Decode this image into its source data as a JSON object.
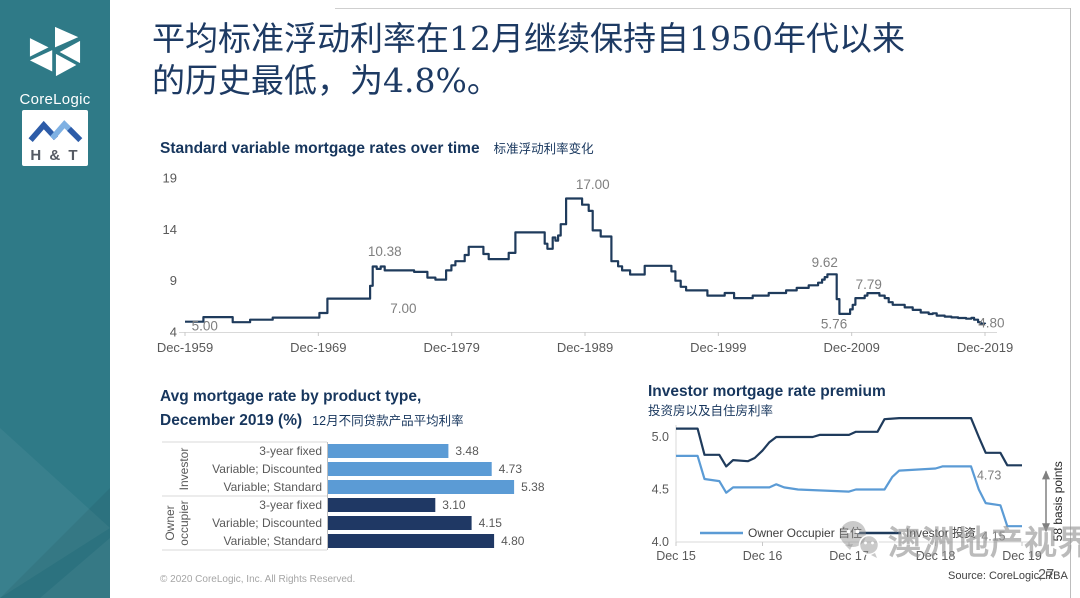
{
  "sidebar": {
    "corelogic_label": "CoreLogic",
    "ht_label": "H & T"
  },
  "title": {
    "line1": "平均标准浮动利率在12月继续保持自1950年代以来",
    "line2": "的历史最低，为4.8%。"
  },
  "footer": {
    "copyright": "© 2020 CoreLogic,  Inc. All Rights Reserved.",
    "source": "Source: CoreLogic, RBA",
    "page": "27"
  },
  "watermark": {
    "icon": "wechat-icon",
    "text": "澳洲地产视界"
  },
  "colors": {
    "sidebar_teal": "#2F7A87",
    "navy_line": "#1F3B5C",
    "light_blue": "#5B9BD5",
    "dark_bar": "#1F3864",
    "heading_blue": "#17365D",
    "annotation_gray": "#7f7f7f",
    "axis_gray": "#595959"
  },
  "chart_data": [
    {
      "id": "svr_over_time",
      "type": "line",
      "interpolation": "step-after",
      "title": "Standard variable mortgage rates over time",
      "title_zh": "标准浮动利率变化",
      "color": "#1F3B5C",
      "ylim": [
        4,
        19
      ],
      "yticks": [
        4,
        9,
        14,
        19
      ],
      "xlim": [
        1959.92,
        2019.92
      ],
      "xticks": [
        {
          "label": "Dec-1959",
          "year": 1959.92
        },
        {
          "label": "Dec-1969",
          "year": 1969.92
        },
        {
          "label": "Dec-1979",
          "year": 1979.92
        },
        {
          "label": "Dec-1989",
          "year": 1989.92
        },
        {
          "label": "Dec-1999",
          "year": 1999.92
        },
        {
          "label": "Dec-2009",
          "year": 2009.92
        },
        {
          "label": "Dec-2019",
          "year": 2019.92
        }
      ],
      "grid": false,
      "legend_position": "none",
      "series": [
        {
          "name": "Standard variable mortgage rate (%)",
          "points": [
            [
              1959.92,
              5.0
            ],
            [
              1961.3,
              5.45
            ],
            [
              1963.2,
              5.45
            ],
            [
              1963.5,
              4.95
            ],
            [
              1964.6,
              4.95
            ],
            [
              1964.8,
              5.2
            ],
            [
              1966.3,
              5.2
            ],
            [
              1966.5,
              5.4
            ],
            [
              1969.8,
              5.4
            ],
            [
              1970.0,
              5.85
            ],
            [
              1970.4,
              5.85
            ],
            [
              1970.6,
              7.25
            ],
            [
              1973.6,
              7.25
            ],
            [
              1973.8,
              8.5
            ],
            [
              1974.0,
              10.38
            ],
            [
              1974.3,
              10.15
            ],
            [
              1974.6,
              10.38
            ],
            [
              1974.9,
              10.0
            ],
            [
              1976.9,
              10.0
            ],
            [
              1977.1,
              9.85
            ],
            [
              1977.9,
              9.85
            ],
            [
              1978.1,
              9.3
            ],
            [
              1978.7,
              9.1
            ],
            [
              1979.3,
              9.1
            ],
            [
              1979.5,
              10.0
            ],
            [
              1979.9,
              10.5
            ],
            [
              1980.2,
              10.9
            ],
            [
              1980.9,
              11.5
            ],
            [
              1981.2,
              12.3
            ],
            [
              1982.1,
              12.3
            ],
            [
              1982.3,
              11.6
            ],
            [
              1982.7,
              11.1
            ],
            [
              1983.9,
              11.1
            ],
            [
              1984.2,
              11.7
            ],
            [
              1984.7,
              13.7
            ],
            [
              1986.7,
              13.7
            ],
            [
              1986.9,
              12.6
            ],
            [
              1987.1,
              12.1
            ],
            [
              1987.5,
              13.2
            ],
            [
              1987.7,
              12.9
            ],
            [
              1987.9,
              13.4
            ],
            [
              1988.1,
              14.5
            ],
            [
              1988.5,
              17.0
            ],
            [
              1989.5,
              17.0
            ],
            [
              1989.7,
              16.4
            ],
            [
              1990.2,
              15.8
            ],
            [
              1990.5,
              13.9
            ],
            [
              1991.1,
              13.3
            ],
            [
              1991.9,
              10.9
            ],
            [
              1992.4,
              10.4
            ],
            [
              1992.7,
              10.0
            ],
            [
              1993.3,
              9.6
            ],
            [
              1994.1,
              9.6
            ],
            [
              1994.4,
              10.45
            ],
            [
              1996.2,
              10.45
            ],
            [
              1996.4,
              9.9
            ],
            [
              1996.7,
              9.0
            ],
            [
              1997.1,
              8.4
            ],
            [
              1997.5,
              8.05
            ],
            [
              1998.8,
              8.05
            ],
            [
              1999.1,
              7.55
            ],
            [
              2000.2,
              7.55
            ],
            [
              2000.4,
              7.8
            ],
            [
              2000.8,
              7.8
            ],
            [
              2001.1,
              7.3
            ],
            [
              2002.3,
              7.3
            ],
            [
              2002.5,
              7.55
            ],
            [
              2003.5,
              7.55
            ],
            [
              2003.7,
              7.8
            ],
            [
              2004.8,
              7.8
            ],
            [
              2005.0,
              8.05
            ],
            [
              2005.6,
              8.05
            ],
            [
              2005.8,
              8.3
            ],
            [
              2006.5,
              8.3
            ],
            [
              2006.7,
              8.55
            ],
            [
              2007.2,
              8.55
            ],
            [
              2007.4,
              8.8
            ],
            [
              2007.7,
              9.1
            ],
            [
              2007.9,
              9.35
            ],
            [
              2008.1,
              9.62
            ],
            [
              2008.6,
              9.62
            ],
            [
              2008.8,
              7.2
            ],
            [
              2009.0,
              5.76
            ],
            [
              2009.6,
              5.76
            ],
            [
              2009.8,
              6.2
            ],
            [
              2010.0,
              6.65
            ],
            [
              2010.2,
              7.3
            ],
            [
              2010.7,
              7.3
            ],
            [
              2010.9,
              7.55
            ],
            [
              2011.1,
              7.79
            ],
            [
              2011.8,
              7.79
            ],
            [
              2012.0,
              7.55
            ],
            [
              2012.4,
              7.3
            ],
            [
              2012.7,
              6.9
            ],
            [
              2013.0,
              6.65
            ],
            [
              2013.6,
              6.65
            ],
            [
              2013.9,
              6.4
            ],
            [
              2014.5,
              6.15
            ],
            [
              2015.1,
              5.9
            ],
            [
              2015.7,
              5.75
            ],
            [
              2016.0,
              5.82
            ],
            [
              2016.3,
              5.6
            ],
            [
              2016.9,
              5.5
            ],
            [
              2017.4,
              5.42
            ],
            [
              2017.9,
              5.36
            ],
            [
              2018.5,
              5.3
            ],
            [
              2018.9,
              5.37
            ],
            [
              2019.1,
              5.2
            ],
            [
              2019.4,
              4.95
            ],
            [
              2019.6,
              4.82
            ],
            [
              2019.92,
              4.78
            ]
          ]
        }
      ],
      "annotations": [
        {
          "text": "5.00",
          "year": 1961.4,
          "value": 4.55
        },
        {
          "text": "7.00",
          "year": 1976.3,
          "value": 6.25
        },
        {
          "text": "10.38",
          "year": 1974.9,
          "value": 11.8
        },
        {
          "text": "17.00",
          "year": 1990.5,
          "value": 18.3
        },
        {
          "text": "9.62",
          "year": 2007.9,
          "value": 10.7
        },
        {
          "text": "7.79",
          "year": 2011.2,
          "value": 8.6
        },
        {
          "text": "5.76",
          "year": 2008.6,
          "value": 4.72
        },
        {
          "text": "4.80",
          "year": 2020.4,
          "value": 4.85
        }
      ]
    },
    {
      "id": "avg_rate_by_product",
      "type": "bar",
      "orientation": "horizontal",
      "title_lines": [
        "Avg mortgage rate by product type,",
        "December 2019 (%)"
      ],
      "title_zh": "12月不同贷款产品平均利率",
      "xlim": [
        0,
        6
      ],
      "groups": [
        {
          "name": "Investor",
          "name_lines": [
            "Investor"
          ],
          "color": "#5B9BD5",
          "bars": [
            {
              "label": "3-year fixed",
              "value": 3.48
            },
            {
              "label": "Variable; Discounted",
              "value": 4.73
            },
            {
              "label": "Variable; Standard",
              "value": 5.38
            }
          ]
        },
        {
          "name": "Owner occupier",
          "name_lines": [
            "Owner",
            "occupier"
          ],
          "color": "#1F3864",
          "bars": [
            {
              "label": "3-year fixed",
              "value": 3.1
            },
            {
              "label": "Variable; Discounted",
              "value": 4.15
            },
            {
              "label": "Variable; Standard",
              "value": 4.8
            }
          ]
        }
      ]
    },
    {
      "id": "investor_premium",
      "type": "line",
      "title": "Investor mortgage rate premium",
      "title_zh": "投资房以及自住房利率",
      "ylim": [
        4.0,
        5.0
      ],
      "yticks": [
        {
          "label": "5.0",
          "value": 5.0
        },
        {
          "label": "4.5",
          "value": 4.5
        },
        {
          "label": "4.0",
          "value": 4.0
        }
      ],
      "xlim": [
        2015.92,
        2019.92
      ],
      "xticks": [
        {
          "label": "Dec 15",
          "year": 2015.92
        },
        {
          "label": "Dec 16",
          "year": 2016.92
        },
        {
          "label": "Dec 17",
          "year": 2017.92
        },
        {
          "label": "Dec 18",
          "year": 2018.92
        },
        {
          "label": "Dec 19",
          "year": 2019.92
        }
      ],
      "legend_position": "bottom-inside",
      "series": [
        {
          "name": "Owner Occupier 自住",
          "color": "#5B9BD5",
          "end_label": {
            "text": "4.15",
            "year": 2019.8,
            "value": 4.15
          },
          "points": [
            [
              2015.92,
              4.82
            ],
            [
              2016.17,
              4.82
            ],
            [
              2016.25,
              4.6
            ],
            [
              2016.42,
              4.58
            ],
            [
              2016.5,
              4.47
            ],
            [
              2016.58,
              4.52
            ],
            [
              2017.0,
              4.52
            ],
            [
              2017.08,
              4.55
            ],
            [
              2017.17,
              4.52
            ],
            [
              2017.33,
              4.5
            ],
            [
              2017.92,
              4.48
            ],
            [
              2018.0,
              4.5
            ],
            [
              2018.33,
              4.5
            ],
            [
              2018.42,
              4.62
            ],
            [
              2018.5,
              4.68
            ],
            [
              2018.92,
              4.7
            ],
            [
              2019.0,
              4.72
            ],
            [
              2019.33,
              4.72
            ],
            [
              2019.42,
              4.5
            ],
            [
              2019.5,
              4.37
            ],
            [
              2019.67,
              4.35
            ],
            [
              2019.75,
              4.15
            ],
            [
              2019.92,
              4.15
            ]
          ]
        },
        {
          "name": "Investor 投资",
          "color": "#1F3B5C",
          "end_label": {
            "text": "4.73",
            "year": 2019.75,
            "value": 4.73
          },
          "points": [
            [
              2015.92,
              5.08
            ],
            [
              2016.17,
              5.08
            ],
            [
              2016.25,
              4.83
            ],
            [
              2016.42,
              4.83
            ],
            [
              2016.5,
              4.72
            ],
            [
              2016.58,
              4.78
            ],
            [
              2016.75,
              4.77
            ],
            [
              2016.83,
              4.8
            ],
            [
              2016.92,
              4.87
            ],
            [
              2017.0,
              4.95
            ],
            [
              2017.08,
              5.0
            ],
            [
              2017.5,
              5.0
            ],
            [
              2017.58,
              5.02
            ],
            [
              2017.92,
              5.02
            ],
            [
              2018.0,
              5.05
            ],
            [
              2018.25,
              5.05
            ],
            [
              2018.33,
              5.17
            ],
            [
              2018.5,
              5.18
            ],
            [
              2019.33,
              5.18
            ],
            [
              2019.42,
              5.0
            ],
            [
              2019.5,
              4.85
            ],
            [
              2019.67,
              4.85
            ],
            [
              2019.75,
              4.73
            ],
            [
              2019.92,
              4.73
            ]
          ]
        }
      ],
      "annotation": {
        "text": "58 basis points",
        "from": 4.73,
        "to": 4.15
      }
    }
  ]
}
